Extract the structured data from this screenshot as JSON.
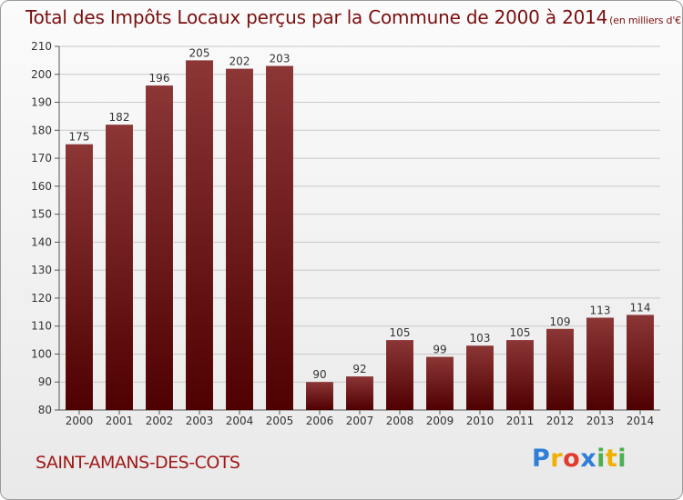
{
  "title": "Total des Impôts Locaux perçus par la Commune de 2000 à 2014",
  "unit": "(en milliers d'€)",
  "commune": "SAINT-AMANS-DES-COTS",
  "logo": {
    "letters": [
      {
        "char": "P",
        "color": "#2f7fd8"
      },
      {
        "char": "r",
        "color": "#f0b000"
      },
      {
        "char": "o",
        "color": "#e23b2d"
      },
      {
        "char": "x",
        "color": "#2f7fd8"
      },
      {
        "char": "i",
        "color": "#4caf50"
      },
      {
        "char": "t",
        "color": "#f0b000"
      },
      {
        "char": "i",
        "color": "#4caf50"
      }
    ]
  },
  "chart_data": {
    "type": "bar",
    "title": "Total des Impôts Locaux perçus par la Commune de 2000 à 2014",
    "categories": [
      "2000",
      "2001",
      "2002",
      "2003",
      "2004",
      "2005",
      "2006",
      "2007",
      "2008",
      "2009",
      "2010",
      "2011",
      "2012",
      "2013",
      "2014"
    ],
    "values": [
      175,
      182,
      196,
      205,
      202,
      203,
      90,
      92,
      105,
      99,
      103,
      105,
      109,
      113,
      114
    ],
    "ylim": [
      80,
      210
    ],
    "yticks": [
      80,
      90,
      100,
      110,
      120,
      130,
      140,
      150,
      160,
      170,
      180,
      190,
      200,
      210
    ],
    "grid": true,
    "bar_color_top": "#8c3636",
    "bar_color_bottom": "#4f0000"
  }
}
